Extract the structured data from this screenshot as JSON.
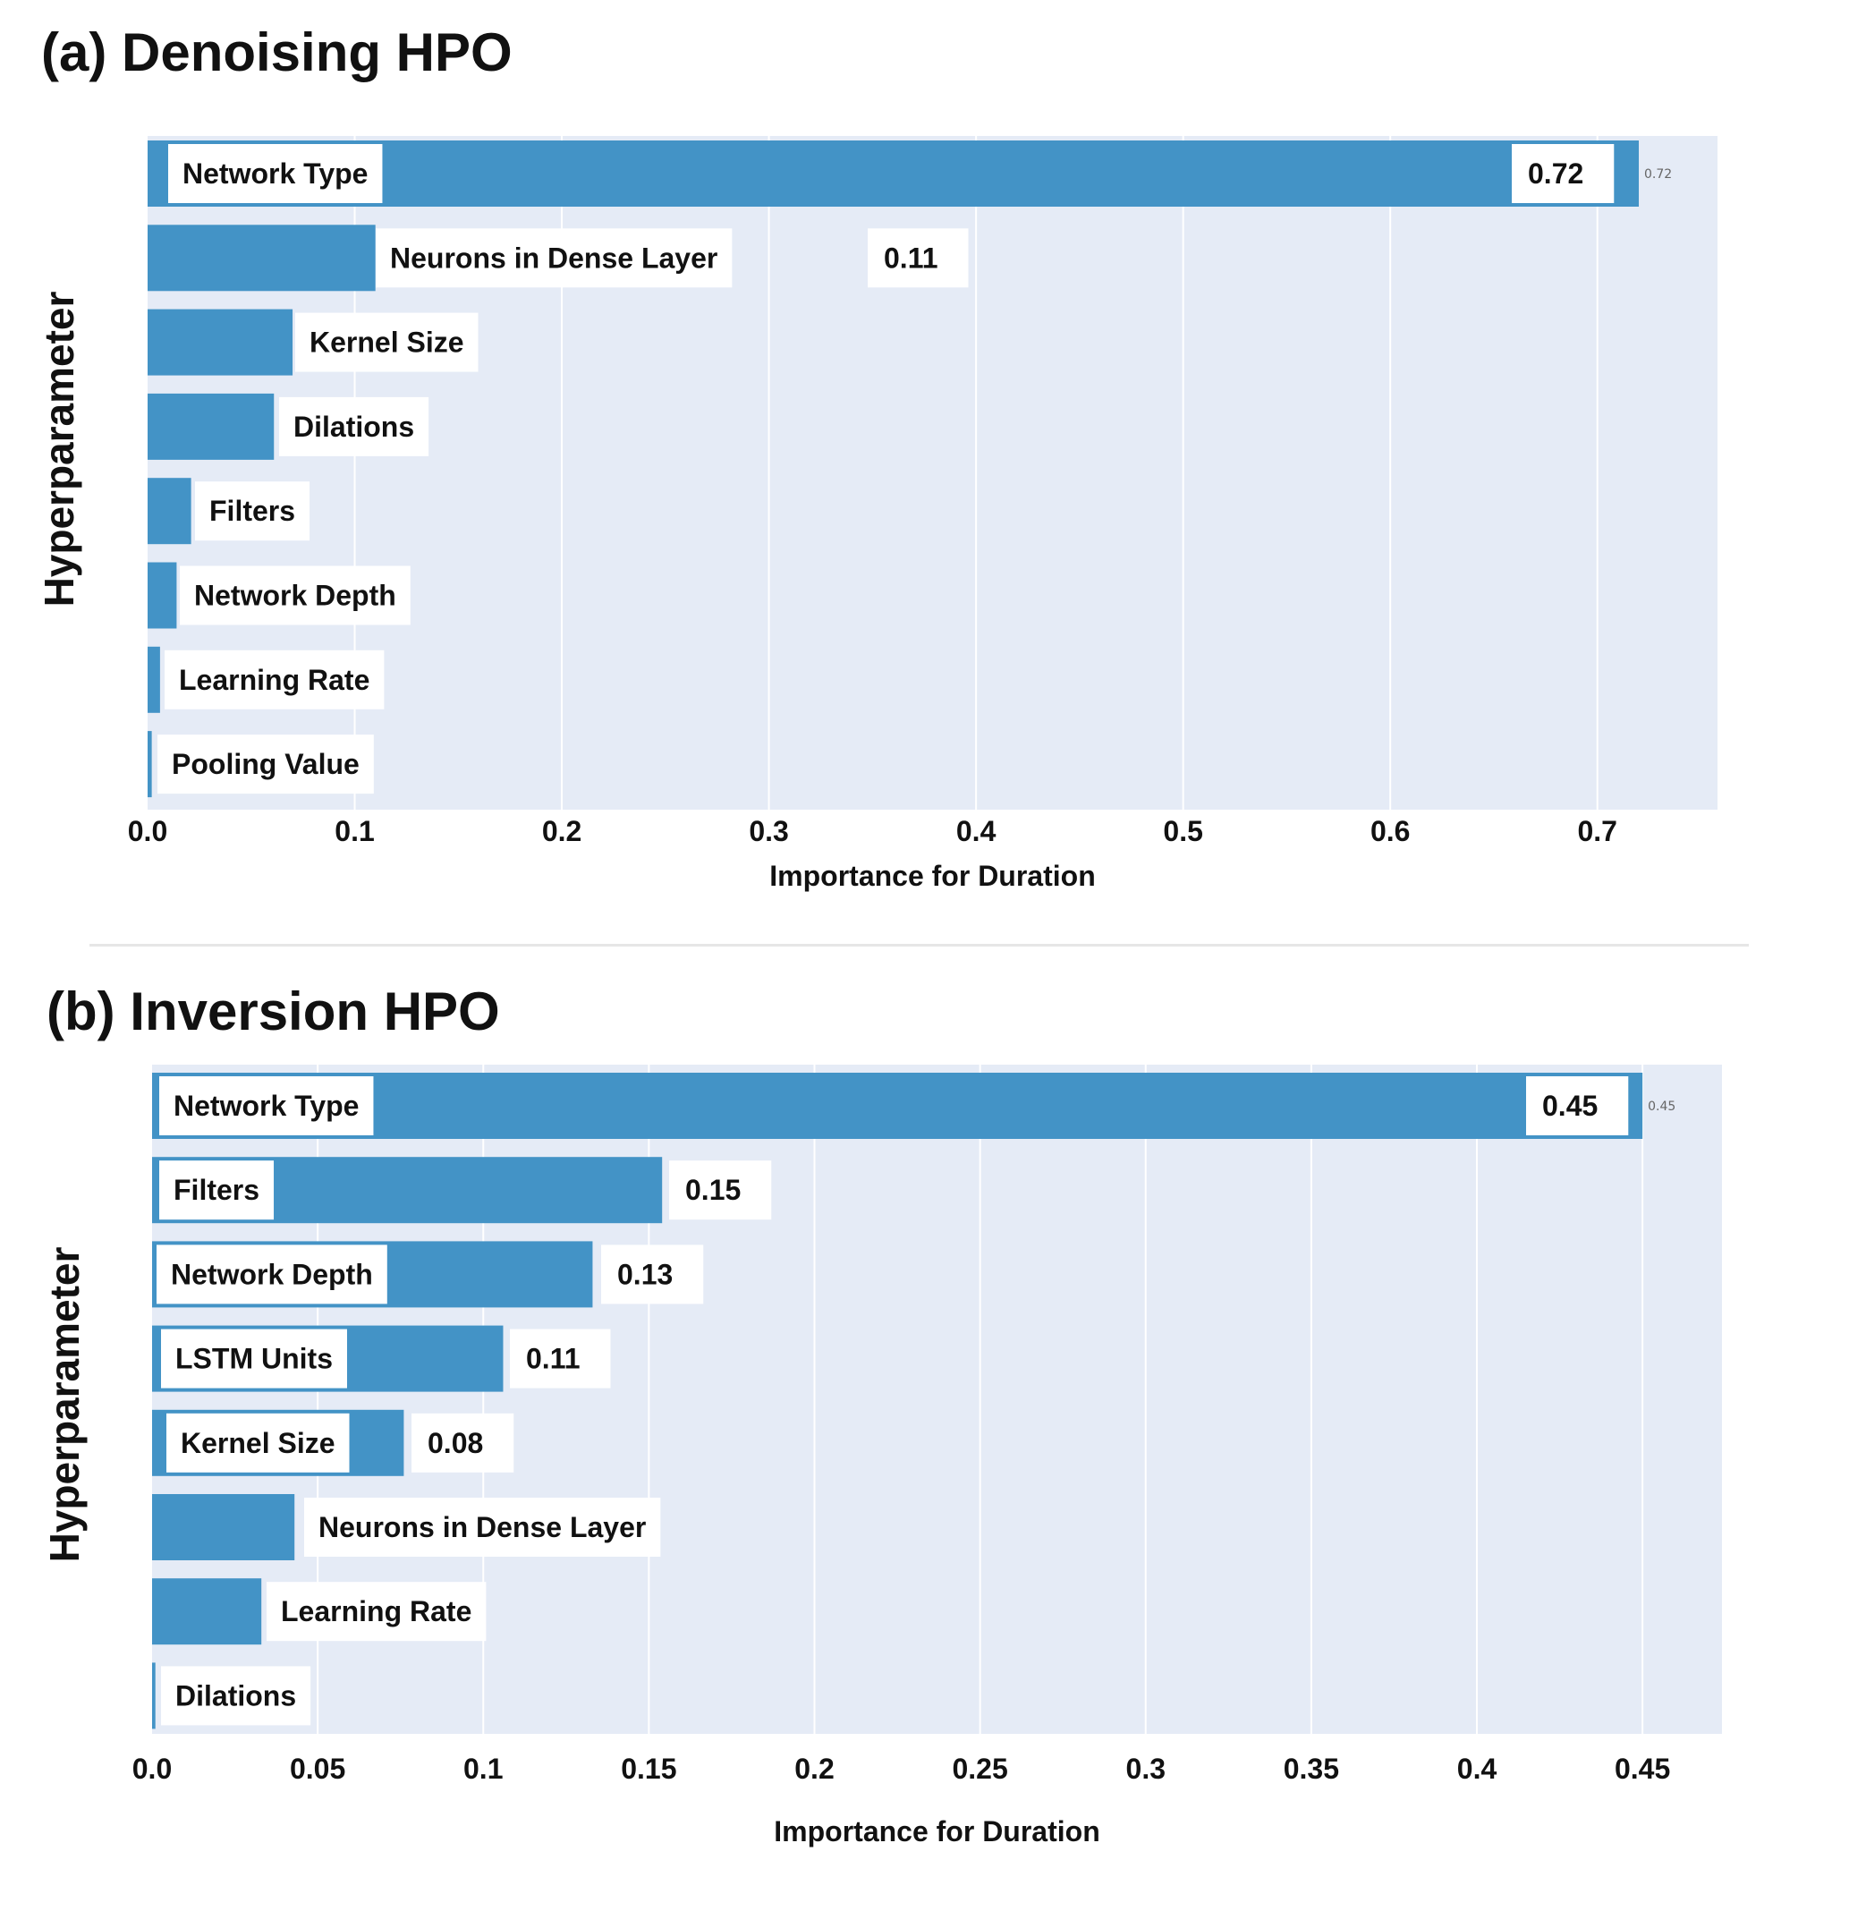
{
  "panels": [
    {
      "title": "(a) Denoising HPO"
    },
    {
      "title": "(b) Inversion HPO"
    }
  ],
  "colors": {
    "bar": "#4393c6",
    "plot_bg": "#e5ebf6",
    "grid": "#ffffff",
    "label_box": "#ffffff"
  },
  "chart_data": [
    {
      "type": "bar",
      "orientation": "horizontal",
      "title": "(a) Denoising HPO",
      "xlabel": "Importance for Duration",
      "ylabel": "Hyperparameter",
      "categories": [
        "Network Type",
        "Neurons in Dense Layer",
        "Kernel Size",
        "Dilations",
        "Filters",
        "Network Depth",
        "Learning Rate",
        "Pooling Value"
      ],
      "values": [
        0.72,
        0.11,
        0.07,
        0.061,
        0.021,
        0.014,
        0.006,
        0.002
      ],
      "value_labels": [
        "0.72",
        "0.11",
        "",
        "",
        "",
        "",
        "",
        ""
      ],
      "small_value_labels": [
        "0.72",
        "",
        "",
        "",
        "",
        "",
        "",
        ""
      ],
      "xticks": [
        {
          "value": 0.0,
          "label": "0.0"
        },
        {
          "value": 0.1,
          "label": "0.1"
        },
        {
          "value": 0.2,
          "label": "0.2"
        },
        {
          "value": 0.3,
          "label": "0.3"
        },
        {
          "value": 0.4,
          "label": "0.4"
        },
        {
          "value": 0.5,
          "label": "0.5"
        },
        {
          "value": 0.6,
          "label": "0.6"
        },
        {
          "value": 0.7,
          "label": "0.7"
        }
      ],
      "xlim": [
        0,
        0.758
      ],
      "grid": true
    },
    {
      "type": "bar",
      "orientation": "horizontal",
      "title": "(b) Inversion HPO",
      "xlabel": "Importance for Duration",
      "ylabel": "Hyperparameter",
      "categories": [
        "Network Type",
        "Filters",
        "Network Depth",
        "LSTM Units",
        "Kernel Size",
        "Neurons in Dense Layer",
        "Learning Rate",
        "Dilations"
      ],
      "values": [
        0.45,
        0.154,
        0.133,
        0.106,
        0.076,
        0.043,
        0.033,
        0.001
      ],
      "value_labels": [
        "0.45",
        "0.15",
        "0.13",
        "0.11",
        "0.08",
        "",
        "",
        ""
      ],
      "small_value_labels": [
        "0.45",
        "",
        "",
        "",
        "",
        "",
        "",
        ""
      ],
      "xticks": [
        {
          "value": 0.0,
          "label": "0.0"
        },
        {
          "value": 0.05,
          "label": "0.05"
        },
        {
          "value": 0.1,
          "label": "0.1"
        },
        {
          "value": 0.15,
          "label": "0.15"
        },
        {
          "value": 0.2,
          "label": "0.2"
        },
        {
          "value": 0.25,
          "label": "0.25"
        },
        {
          "value": 0.3,
          "label": "0.3"
        },
        {
          "value": 0.35,
          "label": "0.35"
        },
        {
          "value": 0.4,
          "label": "0.4"
        },
        {
          "value": 0.45,
          "label": "0.45"
        }
      ],
      "xlim": [
        0,
        0.474
      ],
      "grid": true
    }
  ]
}
